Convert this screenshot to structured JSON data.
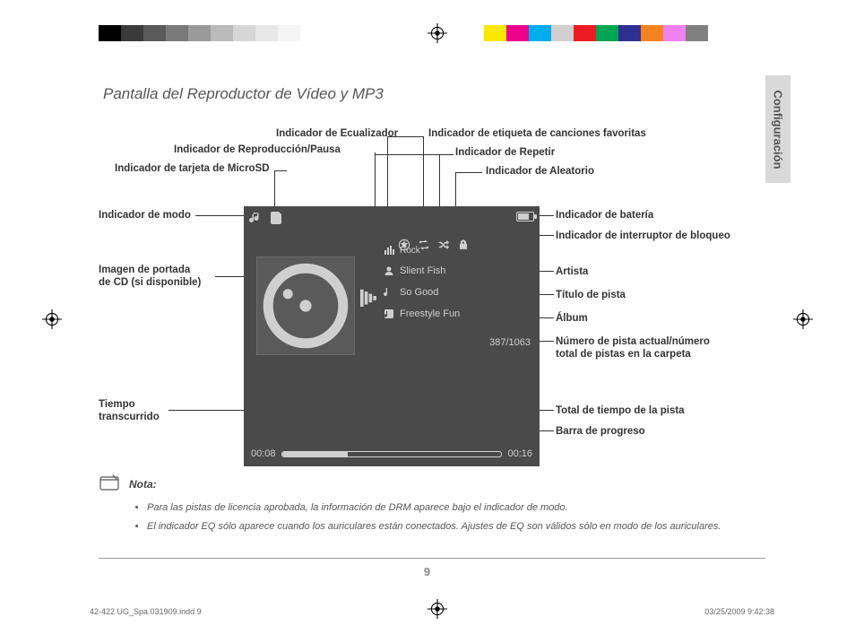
{
  "registration_colors_left": [
    "#000000",
    "#3a3a3a",
    "#5a5a5a",
    "#7a7a7a",
    "#9a9a9a",
    "#bababa",
    "#d6d6d6",
    "#e8e8e8",
    "#f5f5f5",
    "#ffffff"
  ],
  "registration_colors_right": [
    "#f9e800",
    "#ec008c",
    "#00adef",
    "#d0d0d0",
    "#ed1c24",
    "#00a651",
    "#2e3192",
    "#f58220",
    "#ee82ee",
    "#808080"
  ],
  "side_tab": "Configuración",
  "title": "Pantalla del Reproductor de Vídeo y MP3",
  "labels": {
    "mode": "Indicador de modo",
    "microsd": "Indicador de tarjeta de MicroSD",
    "playpause": "Indicador de Reproducción/Pausa",
    "eq": "Indicador de Ecualizador",
    "fav": "Indicador de etiqueta de canciones favoritas",
    "repeat": "Indicador de Repetir",
    "shuffle": "Indicador de Aleatorio",
    "battery": "Indicador de batería",
    "lock": "Indicador de interruptor de bloqueo",
    "cover": "Imagen de portada\nde CD (si disponible)",
    "artist": "Artista",
    "title_track": "Título de pista",
    "album": "Álbum",
    "tracknum": "Número de pista actual/número\ntotal de pistas en la carpeta",
    "elapsed": "Tiempo\ntranscurrido",
    "total_time": "Total de tiempo de la pista",
    "progress": "Barra de progreso"
  },
  "screen": {
    "eq_mode": "Rock",
    "artist": "Slient Fish",
    "track_title": "So Good",
    "album": "Freestyle Fun",
    "track_counter": "387/1063",
    "time_elapsed": "00:08",
    "time_total": "00:16"
  },
  "note": {
    "heading": "Nota:",
    "items": [
      "Para las pistas de licencia aprobada, la información de DRM aparece bajo el indicador de modo.",
      "El indicador EQ sólo aparece cuando los auriculares están conectados. Ajustes de EQ son válidos sólo en modo de los auriculares."
    ]
  },
  "page_number": "9",
  "footer_left": "42-422 UG_Spa.031909.indd   9",
  "footer_right": "03/25/2009   9:42:38"
}
